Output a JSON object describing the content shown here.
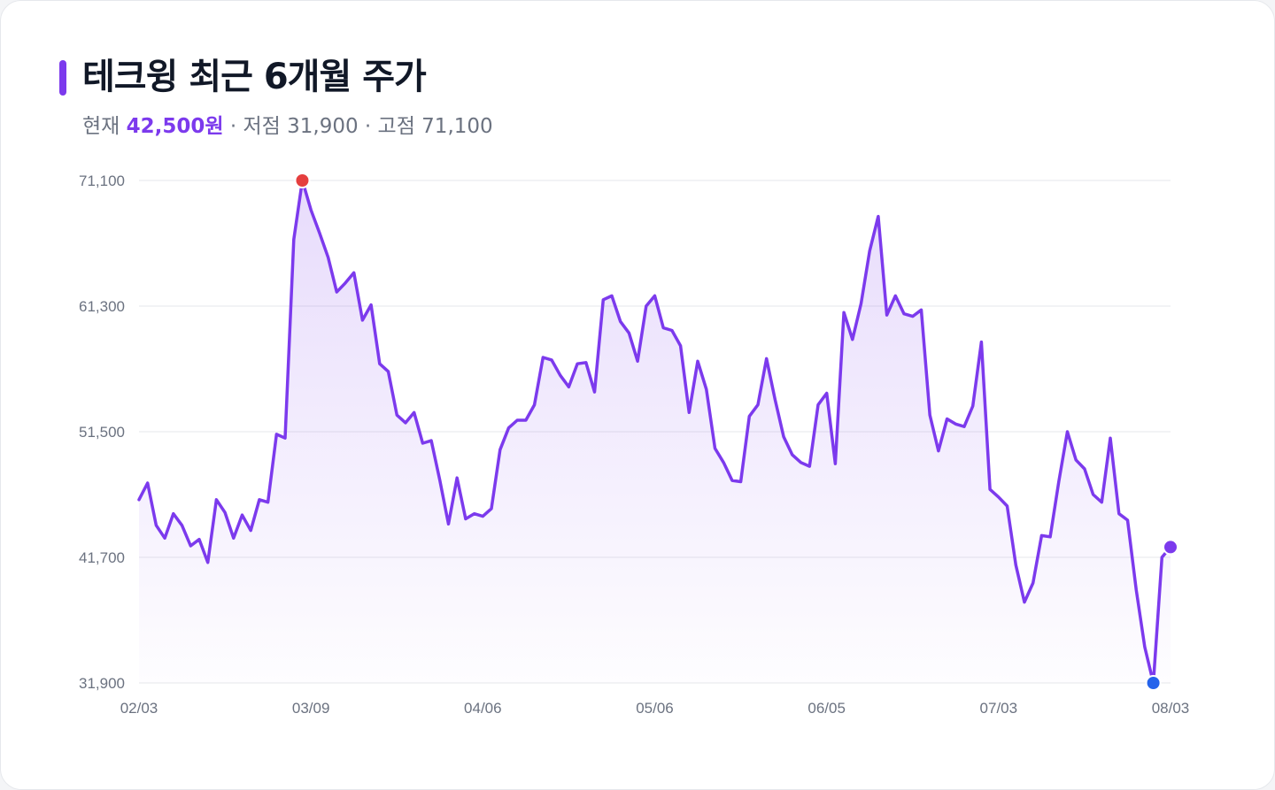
{
  "header": {
    "title": "테크윙 최근 6개월 주가",
    "current_label": "현재",
    "current_value": "42,500원",
    "low_label": " · 저점 31,900",
    "high_label": " · 고점 71,100"
  },
  "colors": {
    "accent": "#7c3aed",
    "high_marker": "#e53e3e",
    "low_marker": "#2563eb",
    "grid": "#e5e7eb"
  },
  "chart_data": {
    "type": "area",
    "title": "테크윙 최근 6개월 주가",
    "xlabel": "",
    "ylabel": "",
    "ylim": [
      31900,
      71100
    ],
    "yticks": [
      31900,
      41700,
      51500,
      61300,
      71100
    ],
    "ytick_labels": [
      "31,900",
      "41,700",
      "51,500",
      "61,300",
      "71,100"
    ],
    "xtick_labels": [
      "02/03",
      "03/09",
      "04/06",
      "05/06",
      "06/05",
      "07/03",
      "08/03"
    ],
    "xtick_index": [
      0,
      20,
      40,
      60,
      80,
      100,
      120
    ],
    "grid": true,
    "legend": "none",
    "markers": {
      "high_index": 19,
      "low_index": 118,
      "current_index": 120
    },
    "values": [
      46200,
      47500,
      44200,
      43200,
      45100,
      44200,
      42600,
      43100,
      41300,
      46200,
      45200,
      43200,
      45000,
      43800,
      46200,
      46000,
      51300,
      51000,
      66500,
      71100,
      68800,
      67000,
      65100,
      62400,
      63100,
      63900,
      60200,
      61400,
      56800,
      56200,
      52800,
      52200,
      53000,
      50600,
      50800,
      47700,
      44300,
      47900,
      44700,
      45100,
      44900,
      45500,
      50100,
      51800,
      52400,
      52400,
      53600,
      57300,
      57100,
      55900,
      55000,
      56800,
      56900,
      54600,
      61800,
      62100,
      60100,
      59200,
      57000,
      61300,
      62100,
      59600,
      59400,
      58200,
      53000,
      57000,
      54800,
      50200,
      49100,
      47700,
      47600,
      52700,
      53600,
      57200,
      54000,
      51100,
      49700,
      49100,
      48800,
      53600,
      54500,
      49000,
      60800,
      58700,
      61500,
      65600,
      68300,
      60600,
      62100,
      60700,
      60500,
      61000,
      52800,
      50000,
      52500,
      52100,
      51900,
      53500,
      58500,
      47000,
      46400,
      45700,
      41100,
      38200,
      39700,
      43400,
      43300,
      47600,
      51500,
      49300,
      48600,
      46600,
      46000,
      51000,
      45100,
      44600,
      39200,
      34700,
      31900,
      41700,
      42500
    ]
  }
}
